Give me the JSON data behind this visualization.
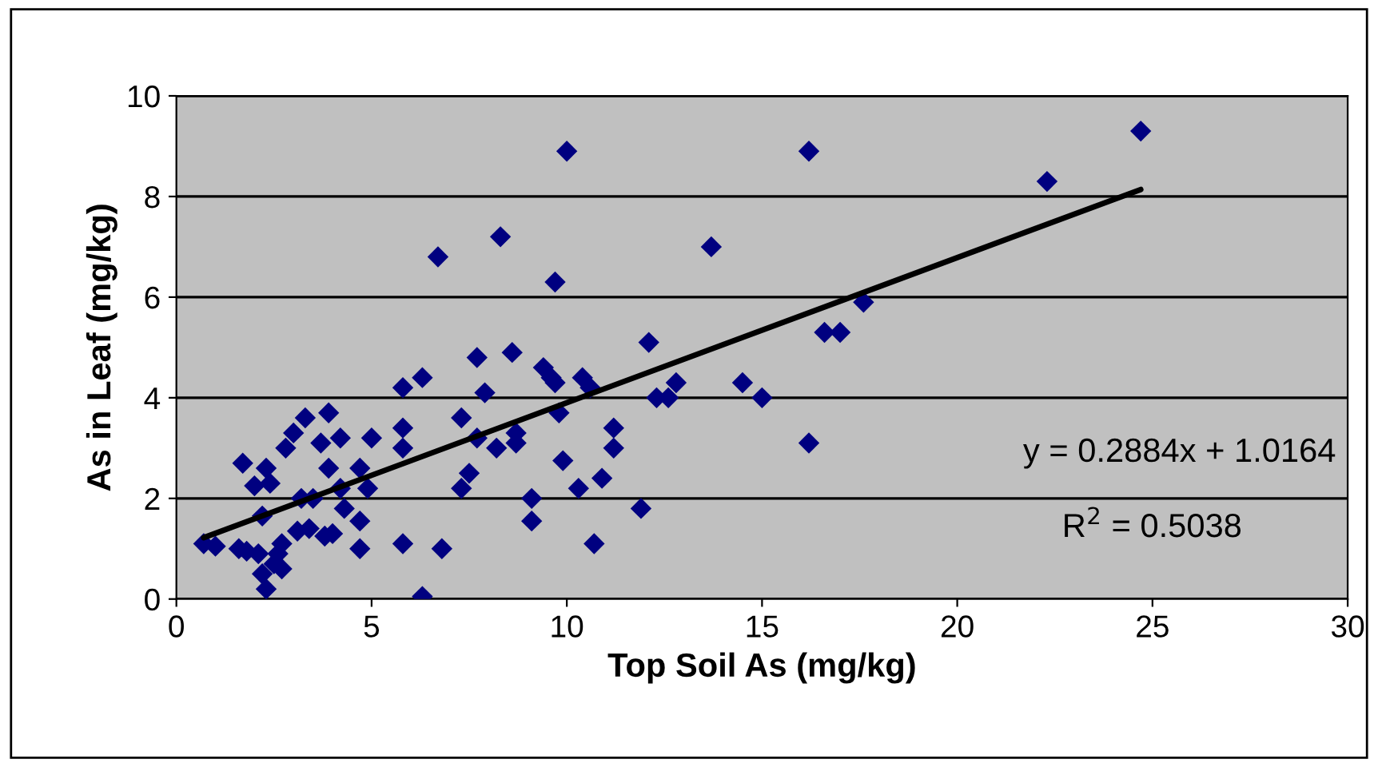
{
  "chart_data": {
    "type": "scatter",
    "xlabel": "Top Soil As (mg/kg)",
    "ylabel": "As in Leaf (mg/kg)",
    "xlim": [
      0,
      30
    ],
    "xticks": [
      0,
      5,
      10,
      15,
      20,
      25,
      30
    ],
    "ylim": [
      0,
      10
    ],
    "yticks": [
      0,
      2,
      4,
      6,
      8,
      10
    ],
    "grid": "y",
    "legend": false,
    "series": [
      {
        "marker": "diamond",
        "color": "#000080",
        "x": [
          0.7,
          1.0,
          1.6,
          1.7,
          1.8,
          2.0,
          2.1,
          2.2,
          2.2,
          2.3,
          2.3,
          2.4,
          2.5,
          2.6,
          2.7,
          2.7,
          2.8,
          3.0,
          3.1,
          3.2,
          3.3,
          3.4,
          3.5,
          3.7,
          3.8,
          3.9,
          3.9,
          4.0,
          4.2,
          4.2,
          4.3,
          4.7,
          4.7,
          4.7,
          4.9,
          5.0,
          5.8,
          5.8,
          5.8,
          5.8,
          6.3,
          6.3,
          6.7,
          6.8,
          7.3,
          7.3,
          7.5,
          7.7,
          7.7,
          7.9,
          8.2,
          8.3,
          8.6,
          8.7,
          8.7,
          9.1,
          9.1,
          9.4,
          9.6,
          9.7,
          9.7,
          9.8,
          9.9,
          10.0,
          10.3,
          10.4,
          10.6,
          10.7,
          10.9,
          11.2,
          11.2,
          11.9,
          12.1,
          12.3,
          12.6,
          12.8,
          13.7,
          14.5,
          15.0,
          16.2,
          16.2,
          16.6,
          17.0,
          17.6,
          22.3,
          24.7
        ],
        "values": [
          1.1,
          1.05,
          1.0,
          2.7,
          0.95,
          2.25,
          0.9,
          1.65,
          0.5,
          0.2,
          2.6,
          2.3,
          0.7,
          0.9,
          0.6,
          1.1,
          3.0,
          3.3,
          1.35,
          2.0,
          3.6,
          1.4,
          2.0,
          3.1,
          1.25,
          2.6,
          3.7,
          1.3,
          3.2,
          2.2,
          1.8,
          2.6,
          1.55,
          1.0,
          2.2,
          3.2,
          4.2,
          3.4,
          3.0,
          1.1,
          4.4,
          0.05,
          6.8,
          1.0,
          3.6,
          2.2,
          2.5,
          3.2,
          4.8,
          4.1,
          3.0,
          7.2,
          4.9,
          3.1,
          3.3,
          2.0,
          1.55,
          4.6,
          4.4,
          6.3,
          4.3,
          3.7,
          2.75,
          8.9,
          2.2,
          4.4,
          4.2,
          1.1,
          2.4,
          3.4,
          3.0,
          1.8,
          5.1,
          4.0,
          4.0,
          4.3,
          7.0,
          4.3,
          4.0,
          3.1,
          8.9,
          5.3,
          5.3,
          5.9,
          8.3,
          9.3
        ]
      },
      {
        "type": "line",
        "marker": "none",
        "color": "#000000",
        "x": [
          0.7,
          24.7
        ],
        "values": [
          1.22,
          8.14
        ]
      }
    ],
    "annotations": [
      "y = 0.2884x + 1.0164",
      "R$^{2}$ = 0.5038"
    ]
  }
}
